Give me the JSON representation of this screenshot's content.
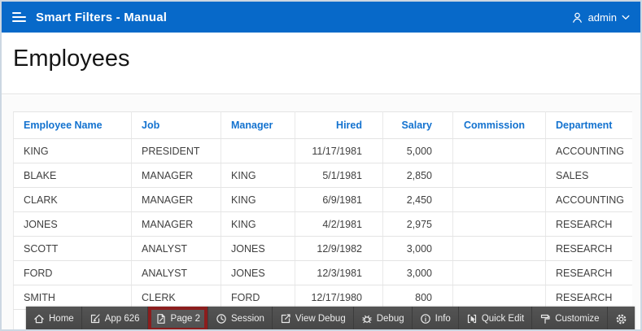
{
  "app_header": {
    "title": "Smart Filters - Manual",
    "user_label": "admin"
  },
  "page": {
    "title": "Employees"
  },
  "table": {
    "columns": [
      {
        "label": "Employee Name",
        "align": "left"
      },
      {
        "label": "Job",
        "align": "left"
      },
      {
        "label": "Manager",
        "align": "left"
      },
      {
        "label": "Hired",
        "align": "right"
      },
      {
        "label": "Salary",
        "align": "right"
      },
      {
        "label": "Commission",
        "align": "right"
      },
      {
        "label": "Department",
        "align": "left"
      }
    ],
    "rows": [
      [
        "KING",
        "PRESIDENT",
        "",
        "11/17/1981",
        "5,000",
        "",
        "ACCOUNTING"
      ],
      [
        "BLAKE",
        "MANAGER",
        "KING",
        "5/1/1981",
        "2,850",
        "",
        "SALES"
      ],
      [
        "CLARK",
        "MANAGER",
        "KING",
        "6/9/1981",
        "2,450",
        "",
        "ACCOUNTING"
      ],
      [
        "JONES",
        "MANAGER",
        "KING",
        "4/2/1981",
        "2,975",
        "",
        "RESEARCH"
      ],
      [
        "SCOTT",
        "ANALYST",
        "JONES",
        "12/9/1982",
        "3,000",
        "",
        "RESEARCH"
      ],
      [
        "FORD",
        "ANALYST",
        "JONES",
        "12/3/1981",
        "3,000",
        "",
        "RESEARCH"
      ],
      [
        "SMITH",
        "CLERK",
        "FORD",
        "12/17/1980",
        "800",
        "",
        "RESEARCH"
      ]
    ]
  },
  "dev_toolbar": {
    "items": [
      {
        "label": "Home",
        "icon": "home-icon"
      },
      {
        "label": "App 626",
        "icon": "edit-app-icon"
      },
      {
        "label": "Page 2",
        "icon": "edit-page-icon",
        "highlighted": true
      },
      {
        "label": "Session",
        "icon": "session-icon"
      },
      {
        "label": "View Debug",
        "icon": "view-debug-icon"
      },
      {
        "label": "Debug",
        "icon": "debug-icon"
      },
      {
        "label": "Info",
        "icon": "info-icon"
      },
      {
        "label": "Quick Edit",
        "icon": "quick-edit-icon"
      },
      {
        "label": "Customize",
        "icon": "customize-icon"
      },
      {
        "label": "",
        "icon": "gear-icon"
      }
    ],
    "highlight_color": "#8b1d1d"
  },
  "colors": {
    "header_bg": "#0769c9",
    "column_link": "#1372cf",
    "toolbar_bg": "#4a4a4a",
    "highlight_border": "#8b1d1d"
  }
}
